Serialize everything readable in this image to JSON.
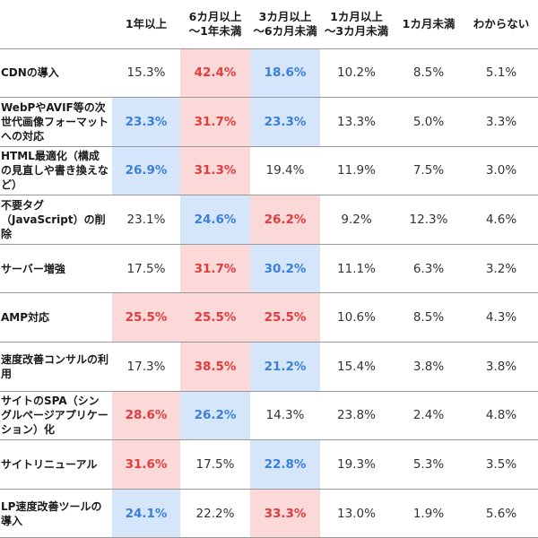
{
  "headers": [
    "",
    "1年以上",
    "6カ月以上\n～1年未満",
    "3カ月以上\n～6カ月未満",
    "1カ月以上\n～3カ月未満",
    "1カ月未満",
    "わからない"
  ],
  "rows": [
    {
      "label": "CDNの導入",
      "values": [
        "15.3%",
        "42.4%",
        "18.6%",
        "10.2%",
        "8.5%",
        "5.1%"
      ],
      "highlights": [
        "",
        "red",
        "blue",
        "",
        "",
        ""
      ]
    },
    {
      "label": "WebPやAVIF等の次世代画像フォーマットへの対応",
      "values": [
        "23.3%",
        "31.7%",
        "23.3%",
        "13.3%",
        "5.0%",
        "3.3%"
      ],
      "highlights": [
        "blue",
        "red",
        "blue",
        "",
        "",
        ""
      ]
    },
    {
      "label": "HTML最適化（構成の見直しや書き換えなど）",
      "values": [
        "26.9%",
        "31.3%",
        "19.4%",
        "11.9%",
        "7.5%",
        "3.0%"
      ],
      "highlights": [
        "blue",
        "red",
        "",
        "",
        "",
        ""
      ]
    },
    {
      "label": "不要タグ（JavaScript）の削除",
      "values": [
        "23.1%",
        "24.6%",
        "26.2%",
        "9.2%",
        "12.3%",
        "4.6%"
      ],
      "highlights": [
        "",
        "blue",
        "red",
        "",
        "",
        ""
      ]
    },
    {
      "label": "サーバー増強",
      "values": [
        "17.5%",
        "31.7%",
        "30.2%",
        "11.1%",
        "6.3%",
        "3.2%"
      ],
      "highlights": [
        "",
        "red",
        "blue",
        "",
        "",
        ""
      ]
    },
    {
      "label": "AMP対応",
      "values": [
        "25.5%",
        "25.5%",
        "25.5%",
        "10.6%",
        "8.5%",
        "4.3%"
      ],
      "highlights": [
        "red",
        "red",
        "red",
        "",
        "",
        ""
      ]
    },
    {
      "label": "速度改善コンサルの利用",
      "values": [
        "17.3%",
        "38.5%",
        "21.2%",
        "15.4%",
        "3.8%",
        "3.8%"
      ],
      "highlights": [
        "",
        "red",
        "blue",
        "",
        "",
        ""
      ]
    },
    {
      "label": "サイトのSPA（シングルページアプリケーション）化",
      "values": [
        "28.6%",
        "26.2%",
        "14.3%",
        "23.8%",
        "2.4%",
        "4.8%"
      ],
      "highlights": [
        "red",
        "blue",
        "",
        "",
        "",
        ""
      ]
    },
    {
      "label": "サイトリニューアル",
      "values": [
        "31.6%",
        "17.5%",
        "22.8%",
        "19.3%",
        "5.3%",
        "3.5%"
      ],
      "highlights": [
        "red",
        "",
        "blue",
        "",
        "",
        ""
      ]
    },
    {
      "label": "LP速度改善ツールの導入",
      "values": [
        "24.1%",
        "22.2%",
        "33.3%",
        "13.0%",
        "1.9%",
        "5.6%"
      ],
      "highlights": [
        "blue",
        "",
        "red",
        "",
        "",
        ""
      ]
    }
  ],
  "colors": {
    "highlight_red_bg": "#fbd9d9",
    "highlight_red_text": "#e23b3b",
    "highlight_blue_bg": "#d6e6fa",
    "highlight_blue_text": "#3a7fd9"
  }
}
